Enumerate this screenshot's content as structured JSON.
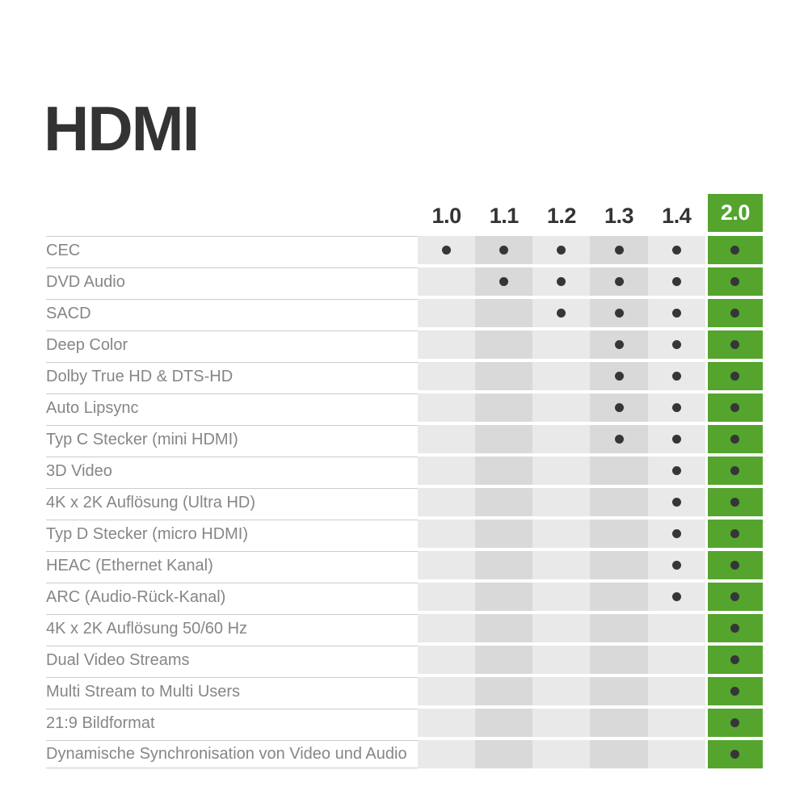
{
  "title": "HDMI",
  "chart_data": {
    "type": "table",
    "title": "HDMI",
    "columns": [
      "1.0",
      "1.1",
      "1.2",
      "1.3",
      "1.4",
      "2.0"
    ],
    "highlight_column": "2.0",
    "rows": [
      "CEC",
      "DVD Audio",
      "SACD",
      "Deep Color",
      "Dolby True HD & DTS-HD",
      "Auto Lipsync",
      "Typ C Stecker (mini HDMI)",
      "3D Video",
      "4K x 2K Auflösung (Ultra HD)",
      "Typ D Stecker (micro HDMI)",
      "HEAC (Ethernet Kanal)",
      "ARC (Audio-Rück-Kanal)",
      "4K x 2K Auflösung 50/60 Hz",
      "Dual Video Streams",
      "Multi Stream to Multi Users",
      "21:9 Bildformat",
      "Dynamische Synchronisation von Video und Audio"
    ],
    "values": [
      [
        1,
        1,
        1,
        1,
        1,
        1
      ],
      [
        0,
        1,
        1,
        1,
        1,
        1
      ],
      [
        0,
        0,
        1,
        1,
        1,
        1
      ],
      [
        0,
        0,
        0,
        1,
        1,
        1
      ],
      [
        0,
        0,
        0,
        1,
        1,
        1
      ],
      [
        0,
        0,
        0,
        1,
        1,
        1
      ],
      [
        0,
        0,
        0,
        1,
        1,
        1
      ],
      [
        0,
        0,
        0,
        0,
        1,
        1
      ],
      [
        0,
        0,
        0,
        0,
        1,
        1
      ],
      [
        0,
        0,
        0,
        0,
        1,
        1
      ],
      [
        0,
        0,
        0,
        0,
        1,
        1
      ],
      [
        0,
        0,
        0,
        0,
        1,
        1
      ],
      [
        0,
        0,
        0,
        0,
        0,
        1
      ],
      [
        0,
        0,
        0,
        0,
        0,
        1
      ],
      [
        0,
        0,
        0,
        0,
        0,
        1
      ],
      [
        0,
        0,
        0,
        0,
        0,
        1
      ],
      [
        0,
        0,
        0,
        0,
        0,
        1
      ]
    ],
    "legend_note": "",
    "grid": "off"
  },
  "colors": {
    "green": "#55a42e",
    "column_light": "#e9e9e9",
    "column_dark": "#d9d9d9",
    "dot": "#363636",
    "label_text": "#868686",
    "heading_text": "#333333",
    "separator_line": "#cbcbcb",
    "background": "#ffffff"
  }
}
